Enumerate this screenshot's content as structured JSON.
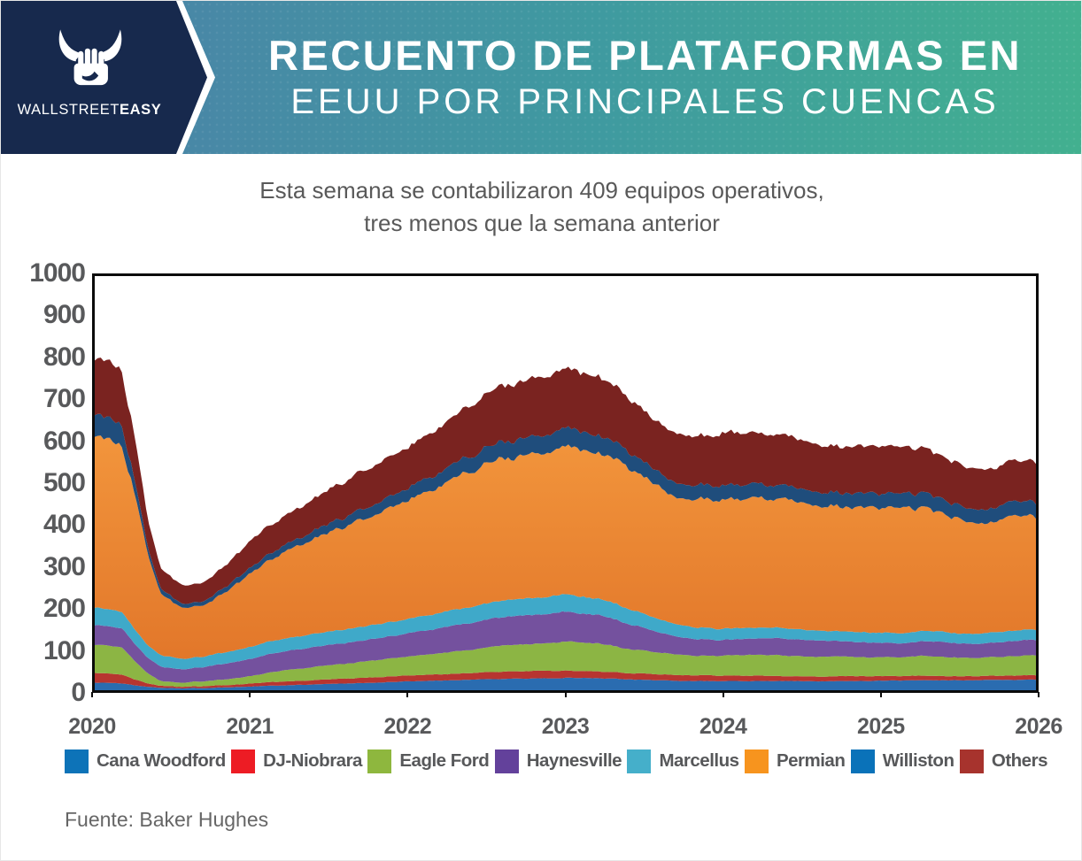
{
  "header": {
    "logo": {
      "brand_light": "WALLSTREET",
      "brand_bold": "EASY"
    },
    "title_line1": "RECUENTO DE PLATAFORMAS EN",
    "title_line2": "EEUU POR PRINCIPALES CUENCAS",
    "colors": {
      "gradient_left": "#4d7fa9",
      "gradient_right": "#42b08f",
      "logo_bg": "#17294d"
    }
  },
  "subtitle": {
    "line1": "Esta semana se contabilizaron 409 equipos operativos,",
    "line2": "tres menos que la semana anterior"
  },
  "source": "Fuente: Baker Hughes",
  "chart_data": {
    "type": "area",
    "stacked": true,
    "title": "",
    "xlabel": "",
    "ylabel": "",
    "x_domain": [
      2020,
      2026
    ],
    "x_tick_labels": [
      "2020",
      "2021",
      "2022",
      "2023",
      "2024",
      "2025",
      "2026"
    ],
    "ylim": [
      0,
      1000
    ],
    "yticks": [
      0,
      100,
      200,
      300,
      400,
      500,
      600,
      700,
      800,
      900,
      1000
    ],
    "grid": false,
    "legend_position": "bottom",
    "axis_color": "#0a0a0a",
    "label_color": "#58595b",
    "sampling_note": "values are monthly rig counts, Jan 2020 - Dec 2025, stacked bottom to top",
    "series": [
      {
        "name": "Cana Woodford",
        "color": "#0d73b8",
        "area_color": "#2a6cb0",
        "monthly": [
          18,
          18,
          17,
          12,
          8,
          6,
          5,
          5,
          5,
          6,
          7,
          8,
          9,
          10,
          11,
          12,
          13,
          14,
          15,
          16,
          17,
          18,
          19,
          20,
          21,
          22,
          23,
          24,
          25,
          26,
          27,
          27,
          28,
          28,
          29,
          29,
          30,
          30,
          29,
          28,
          27,
          26,
          25,
          24,
          23,
          22,
          22,
          22,
          22,
          22,
          22,
          22,
          22,
          22,
          22,
          22,
          22,
          22,
          22,
          22,
          23,
          23,
          23,
          24,
          24,
          24,
          24,
          24,
          25,
          25,
          25,
          25
        ]
      },
      {
        "name": "DJ-Niobrara",
        "color": "#ed1c24",
        "area_color": "#b73530",
        "monthly": [
          23,
          22,
          21,
          15,
          8,
          5,
          4,
          4,
          4,
          5,
          5,
          6,
          7,
          8,
          9,
          10,
          10,
          11,
          11,
          12,
          12,
          13,
          13,
          14,
          14,
          14,
          15,
          15,
          16,
          16,
          17,
          17,
          17,
          18,
          18,
          18,
          18,
          17,
          17,
          16,
          16,
          15,
          15,
          14,
          14,
          14,
          14,
          14,
          13,
          13,
          13,
          13,
          12,
          12,
          12,
          12,
          12,
          12,
          12,
          12,
          11,
          11,
          11,
          11,
          11,
          10,
          10,
          10,
          10,
          10,
          11,
          11
        ]
      },
      {
        "name": "Eagle Ford",
        "color": "#8eb73e",
        "area_color": "#8cb544",
        "monthly": [
          68,
          68,
          67,
          45,
          25,
          12,
          10,
          10,
          11,
          12,
          14,
          16,
          18,
          22,
          26,
          28,
          30,
          32,
          34,
          36,
          38,
          40,
          42,
          44,
          46,
          48,
          50,
          52,
          54,
          57,
          60,
          62,
          64,
          65,
          66,
          68,
          70,
          70,
          68,
          66,
          62,
          58,
          55,
          52,
          50,
          48,
          47,
          47,
          48,
          49,
          50,
          51,
          50,
          49,
          48,
          48,
          48,
          47,
          46,
          46,
          45,
          46,
          47,
          48,
          47,
          46,
          45,
          44,
          44,
          45,
          46,
          47
        ]
      },
      {
        "name": "Haynesville",
        "color": "#63419b",
        "area_color": "#74519e",
        "monthly": [
          48,
          47,
          46,
          43,
          38,
          35,
          33,
          33,
          34,
          36,
          38,
          40,
          42,
          44,
          45,
          46,
          47,
          48,
          49,
          50,
          51,
          52,
          53,
          54,
          56,
          58,
          60,
          62,
          64,
          66,
          68,
          69,
          70,
          70,
          71,
          71,
          72,
          71,
          70,
          68,
          64,
          60,
          55,
          50,
          46,
          42,
          40,
          39,
          38,
          38,
          39,
          40,
          41,
          41,
          40,
          39,
          38,
          37,
          36,
          36,
          35,
          34,
          34,
          35,
          36,
          36,
          35,
          34,
          34,
          35,
          36,
          37
        ]
      },
      {
        "name": "Marcellus",
        "color": "#45afca",
        "area_color": "#3fa9c9",
        "monthly": [
          42,
          41,
          40,
          35,
          30,
          27,
          26,
          25,
          25,
          26,
          27,
          28,
          29,
          30,
          30,
          31,
          31,
          32,
          32,
          33,
          33,
          34,
          34,
          35,
          35,
          36,
          36,
          37,
          38,
          38,
          39,
          40,
          40,
          41,
          41,
          42,
          42,
          41,
          40,
          39,
          38,
          36,
          34,
          32,
          30,
          29,
          28,
          28,
          27,
          27,
          26,
          26,
          25,
          25,
          25,
          24,
          24,
          24,
          24,
          24,
          24,
          24,
          24,
          25,
          25,
          25,
          24,
          24,
          24,
          25,
          25,
          25
        ]
      },
      {
        "name": "Permian",
        "color": "#f7941e",
        "gradient": [
          "#f2953c",
          "#e2772a"
        ],
        "monthly": [
          405,
          405,
          405,
          335,
          220,
          150,
          130,
          122,
          125,
          133,
          145,
          160,
          175,
          190,
          205,
          215,
          225,
          232,
          240,
          247,
          255,
          263,
          270,
          280,
          290,
          295,
          305,
          315,
          325,
          330,
          340,
          345,
          340,
          345,
          350,
          350,
          355,
          353,
          350,
          355,
          350,
          340,
          330,
          325,
          315,
          310,
          310,
          310,
          310,
          312,
          310,
          308,
          305,
          305,
          305,
          305,
          305,
          303,
          302,
          300,
          298,
          300,
          300,
          295,
          290,
          285,
          280,
          275,
          270,
          268,
          270,
          272
        ]
      },
      {
        "name": "Williston",
        "color": "#0a72b9",
        "area_color": "#1f4d7c",
        "monthly": [
          52,
          52,
          50,
          35,
          18,
          12,
          11,
          10,
          10,
          11,
          12,
          13,
          14,
          15,
          16,
          17,
          18,
          20,
          22,
          23,
          24,
          26,
          27,
          28,
          30,
          32,
          33,
          34,
          36,
          38,
          39,
          40,
          41,
          42,
          43,
          44,
          45,
          44,
          43,
          42,
          40,
          38,
          37,
          36,
          35,
          35,
          34,
          34,
          34,
          34,
          34,
          34,
          34,
          33,
          33,
          33,
          33,
          33,
          34,
          34,
          34,
          34,
          35,
          35,
          35,
          34,
          34,
          33,
          33,
          34,
          35,
          35
        ]
      },
      {
        "name": "Others",
        "color": "#a7332d",
        "area_color": "#7a2320",
        "monthly": [
          134,
          134,
          132,
          105,
          70,
          50,
          46,
          44,
          45,
          48,
          52,
          57,
          66,
          68,
          70,
          72,
          75,
          78,
          82,
          86,
          90,
          93,
          95,
          97,
          98,
          102,
          106,
          112,
          118,
          124,
          130,
          134,
          137,
          139,
          141,
          142,
          143,
          142,
          140,
          138,
          133,
          128,
          124,
          120,
          118,
          118,
          118,
          120,
          128,
          126,
          124,
          122,
          120,
          118,
          117,
          116,
          115,
          114,
          114,
          114,
          115,
          114,
          113,
          110,
          106,
          103,
          100,
          98,
          97,
          97,
          98,
          98
        ]
      }
    ]
  }
}
